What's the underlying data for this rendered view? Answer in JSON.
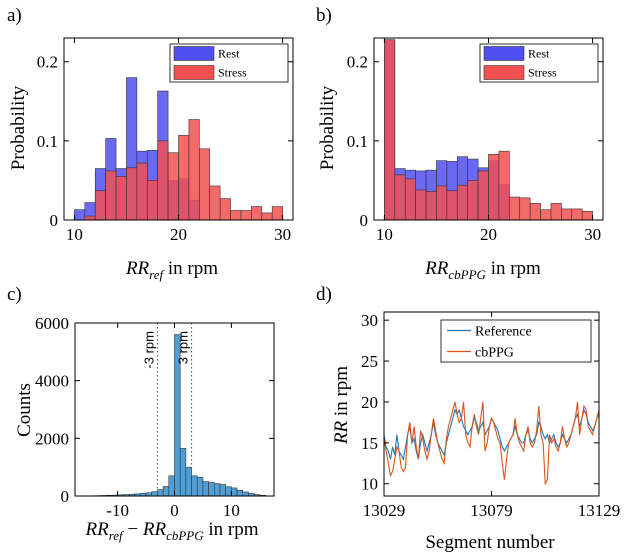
{
  "chart_data": [
    {
      "panel": "a)",
      "type": "bar",
      "bin_edges": [
        10,
        11,
        12,
        13,
        14,
        15,
        16,
        17,
        18,
        19,
        20,
        21,
        22,
        23,
        24,
        25,
        26,
        27,
        28,
        29,
        30
      ],
      "series": [
        {
          "name": "Rest",
          "color": "#4f4ff2",
          "values": [
            0.013,
            0.022,
            0.065,
            0.103,
            0.065,
            0.18,
            0.087,
            0.088,
            0.163,
            0.05,
            0.052,
            0.025,
            0,
            0,
            0,
            0,
            0,
            0,
            0,
            0
          ]
        },
        {
          "name": "Stress",
          "color": "#f25050",
          "values": [
            0,
            0.005,
            0.037,
            0.062,
            0.055,
            0.066,
            0.072,
            0.05,
            0.1,
            0.085,
            0.107,
            0.127,
            0.09,
            0.043,
            0.027,
            0.012,
            0.012,
            0.017,
            0.009,
            0.017
          ]
        }
      ],
      "xlim": [
        9,
        31
      ],
      "ylim": [
        0,
        0.23
      ],
      "xticks": [
        "10",
        "20",
        "30"
      ],
      "yticks": [
        "0",
        "0.1",
        "0.2"
      ],
      "ylabel": "Probability",
      "xlabel_main": "RR",
      "xlabel_sub": "ref",
      "xlabel_tail": " in rpm",
      "legend_position": "top-right"
    },
    {
      "panel": "b)",
      "type": "bar",
      "bin_edges": [
        10,
        11,
        12,
        13,
        14,
        15,
        16,
        17,
        18,
        19,
        20,
        21,
        22,
        23,
        24,
        25,
        26,
        27,
        28,
        29,
        30
      ],
      "series": [
        {
          "name": "Rest",
          "color": "#4f4ff2",
          "values": [
            0.227,
            0.065,
            0.063,
            0.062,
            0.063,
            0.075,
            0.074,
            0.08,
            0.077,
            0.066,
            0.075,
            0.045,
            0,
            0,
            0,
            0,
            0,
            0,
            0,
            0
          ]
        },
        {
          "name": "Stress",
          "color": "#f25050",
          "values": [
            0.228,
            0.057,
            0.052,
            0.038,
            0.036,
            0.043,
            0.037,
            0.044,
            0.05,
            0.062,
            0.083,
            0.087,
            0.029,
            0.028,
            0.021,
            0.013,
            0.021,
            0.014,
            0.014,
            0.011
          ]
        }
      ],
      "xlim": [
        9,
        31
      ],
      "ylim": [
        0,
        0.23
      ],
      "xticks": [
        "10",
        "20",
        "30"
      ],
      "yticks": [
        "0",
        "0.1",
        "0.2"
      ],
      "ylabel": "Probability",
      "xlabel_main": "RR",
      "xlabel_sub": "cbPPG",
      "xlabel_tail": " in rpm",
      "legend_position": "top-right"
    },
    {
      "panel": "c)",
      "type": "bar",
      "bin_edges": [
        -15,
        -14,
        -13,
        -12,
        -11,
        -10,
        -9,
        -8,
        -7,
        -6,
        -5,
        -4,
        -3,
        -2,
        -1,
        0,
        1,
        2,
        3,
        4,
        5,
        6,
        7,
        8,
        9,
        10,
        11,
        12,
        13,
        14,
        15,
        16
      ],
      "series": [
        {
          "name": "Counts",
          "color": "#4f9fd6",
          "values": [
            8,
            12,
            18,
            25,
            30,
            40,
            50,
            60,
            75,
            90,
            110,
            150,
            220,
            330,
            700,
            5600,
            1650,
            1000,
            700,
            650,
            500,
            470,
            430,
            400,
            320,
            280,
            200,
            140,
            90,
            50,
            25
          ]
        }
      ],
      "vlines": [
        {
          "x": -3,
          "label": "-3 rpm"
        },
        {
          "x": 3,
          "label": "3 rpm"
        }
      ],
      "xlim": [
        -17.5,
        17.5
      ],
      "ylim": [
        0,
        6000
      ],
      "xticks": [
        "-10",
        "0",
        "10"
      ],
      "yticks": [
        "0",
        "2000",
        "4000",
        "6000"
      ],
      "ylabel": "Counts",
      "xlabel_a": "RR",
      "xlabel_a_sub": "ref",
      "xlabel_minus": " − ",
      "xlabel_b": "RR",
      "xlabel_b_sub": "cbPPG",
      "xlabel_tail": " in rpm"
    },
    {
      "panel": "d)",
      "type": "line",
      "x_start": 13029,
      "series": [
        {
          "name": "Reference",
          "color": "#1f77b4",
          "values": [
            16,
            14.5,
            14,
            13,
            14.5,
            13.5,
            16,
            14,
            13.5,
            13,
            14.5,
            16,
            17,
            15,
            15.5,
            14,
            13,
            15,
            16,
            15,
            14,
            15,
            16,
            17.5,
            16,
            15,
            14.5,
            14,
            13.5,
            15,
            16,
            17,
            18,
            19,
            18.5,
            19,
            18,
            17,
            16.5,
            16,
            16.5,
            17,
            18,
            17.5,
            16.5,
            17,
            17.5,
            16,
            16.5,
            17,
            18,
            17.5,
            17,
            16.5,
            15.5,
            14.5,
            14,
            14.5,
            15,
            15.5,
            16,
            17,
            16,
            15.5,
            15,
            15,
            16,
            16.5,
            15.5,
            15,
            15.5,
            16,
            17.5,
            17,
            16,
            15.5,
            16,
            15,
            15.5,
            16,
            15,
            14.5,
            15,
            16,
            15.5,
            15,
            15.5,
            16,
            17,
            18,
            18.5,
            17,
            18,
            19,
            18.5,
            17.5,
            17,
            16.5,
            17,
            18,
            18.5
          ]
        },
        {
          "name": "cbPPG",
          "color": "#d95319",
          "values": [
            15.5,
            14,
            12.5,
            11,
            11.5,
            13,
            14.5,
            14,
            12,
            11.5,
            12,
            16,
            17.5,
            15,
            17,
            14.5,
            13,
            16.5,
            15.5,
            14,
            13,
            14,
            16,
            18,
            16.5,
            15,
            14,
            13,
            12.5,
            15.5,
            17,
            18,
            19,
            20,
            18.5,
            17.5,
            18,
            20,
            16,
            15,
            14.5,
            17,
            18.5,
            17,
            16,
            18,
            20,
            14,
            15,
            17,
            18,
            17.5,
            16.5,
            15.5,
            15,
            12.5,
            10.5,
            13,
            15,
            15.5,
            16,
            18,
            16,
            15,
            14.5,
            14,
            16,
            17,
            15,
            14.5,
            15,
            16.5,
            19.5,
            16,
            15,
            10,
            10.5,
            16,
            15,
            15.5,
            14.5,
            14,
            15,
            17,
            15.5,
            14.5,
            15,
            16,
            17,
            18,
            20,
            16,
            18,
            19.5,
            19,
            17,
            16.5,
            16,
            17,
            18,
            19
          ]
        }
      ],
      "xlim": [
        13029,
        13129
      ],
      "ylim": [
        8.5,
        31
      ],
      "xticks": [
        "13029",
        "13079",
        "13129"
      ],
      "yticks": [
        "10",
        "15",
        "20",
        "25",
        "30"
      ],
      "ylabel_main": "RR",
      "ylabel_tail": " in rpm",
      "xlabel": "Segment number",
      "legend_position": "top-right"
    }
  ]
}
